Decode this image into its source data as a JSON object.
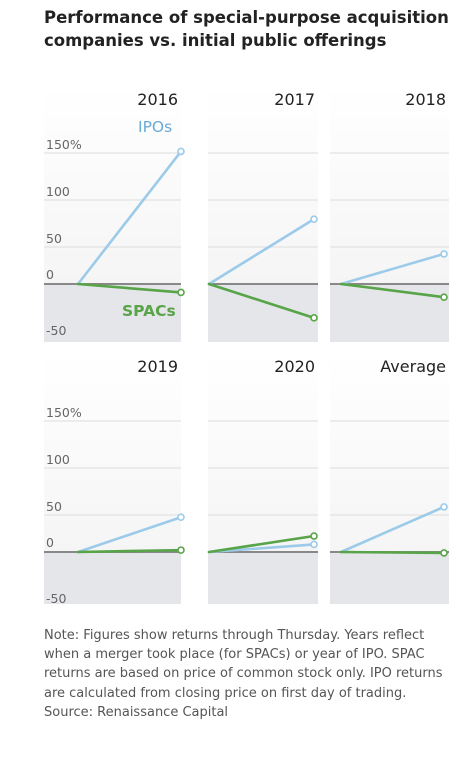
{
  "title": "Performance of special-purpose acquisition companies vs. initial public offerings",
  "note": "Note: Figures show returns through Thursday. Years reflect when a merger took place (for SPACs) or year of IPO. SPAC returns are based on price of common stock only. IPO returns are calculated from closing price on first day of trading.",
  "source": "Source: Renaissance Capital",
  "colors": {
    "ipo": "#9ccbea",
    "spac": "#58a448",
    "panel_top": "#f5f5f5",
    "panel_bottom": "#e5e6e9",
    "zero_line": "#888888"
  },
  "chart_data": [
    {
      "type": "line",
      "title": "2016",
      "ylim": [
        -60,
        160
      ],
      "ytick_labels": [
        "150%",
        "100",
        "50",
        "0",
        "-50"
      ],
      "series": [
        {
          "name": "IPOs",
          "x": [
            0,
            1
          ],
          "values": [
            0,
            141
          ]
        },
        {
          "name": "SPACs",
          "x": [
            0,
            1
          ],
          "values": [
            0,
            -9
          ]
        }
      ]
    },
    {
      "type": "line",
      "title": "2017",
      "ylim": [
        -60,
        160
      ],
      "series": [
        {
          "name": "IPOs",
          "x": [
            0,
            1
          ],
          "values": [
            0,
            69
          ]
        },
        {
          "name": "SPACs",
          "x": [
            0,
            1
          ],
          "values": [
            0,
            -36
          ]
        }
      ]
    },
    {
      "type": "line",
      "title": "2018",
      "ylim": [
        -60,
        160
      ],
      "series": [
        {
          "name": "IPOs",
          "x": [
            0,
            1
          ],
          "values": [
            0,
            32
          ]
        },
        {
          "name": "SPACs",
          "x": [
            0,
            1
          ],
          "values": [
            0,
            -14
          ]
        }
      ]
    },
    {
      "type": "line",
      "title": "2019",
      "ylim": [
        -60,
        160
      ],
      "ytick_labels": [
        "150%",
        "100",
        "50",
        "0",
        "-50"
      ],
      "series": [
        {
          "name": "IPOs",
          "x": [
            0,
            1
          ],
          "values": [
            0,
            37
          ]
        },
        {
          "name": "SPACs",
          "x": [
            0,
            1
          ],
          "values": [
            0,
            2
          ]
        }
      ]
    },
    {
      "type": "line",
      "title": "2020",
      "ylim": [
        -60,
        160
      ],
      "series": [
        {
          "name": "IPOs",
          "x": [
            0,
            1
          ],
          "values": [
            0,
            8
          ]
        },
        {
          "name": "SPACs",
          "x": [
            0,
            1
          ],
          "values": [
            0,
            17
          ]
        }
      ]
    },
    {
      "type": "line",
      "title": "Average",
      "ylim": [
        -60,
        160
      ],
      "series": [
        {
          "name": "IPOs",
          "x": [
            0,
            1
          ],
          "values": [
            0,
            48
          ]
        },
        {
          "name": "SPACs",
          "x": [
            0,
            1
          ],
          "values": [
            0,
            -1
          ]
        }
      ]
    }
  ]
}
